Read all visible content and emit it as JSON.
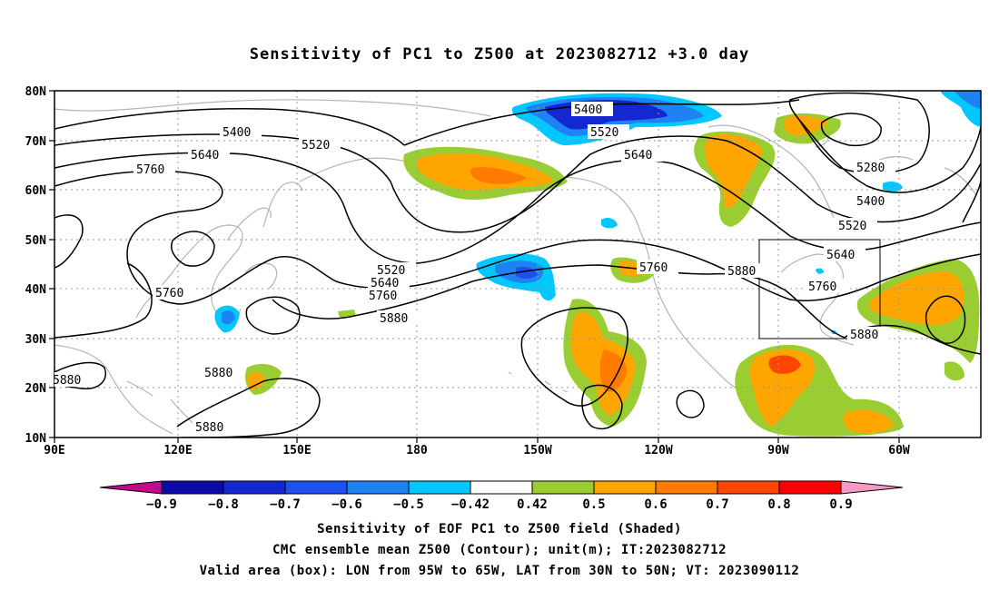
{
  "title": "Sensitivity of PC1 to Z500 at 2023082712 +3.0 day",
  "axes": {
    "lon_labels": [
      "90E",
      "120E",
      "150E",
      "180",
      "150W",
      "120W",
      "90W",
      "60W"
    ],
    "lat_labels": [
      "80N",
      "70N",
      "60N",
      "50N",
      "40N",
      "30N",
      "20N",
      "10N"
    ]
  },
  "contour_labels": {
    "c5400a": "5400",
    "c5520a": "5520",
    "c5640a": "5640",
    "c5760a": "5760",
    "c5400b": "5400",
    "c5520b": "5520",
    "c5640b": "5640",
    "c5280": "5280",
    "c5400c": "5400",
    "c5520c": "5520",
    "c5640c": "5640",
    "c5760c": "5760",
    "c5880c": "5880",
    "c5520d": "5520",
    "c5640d": "5640",
    "c5760d": "5760",
    "c5880d": "5880",
    "c5760e": "5760",
    "c5880e": "5880",
    "c5760f": "5760",
    "c5880f": "5880",
    "c5880g": "5880",
    "c5880h": "5880"
  },
  "colorbar": {
    "labels": [
      "-0.9",
      "-0.8",
      "-0.7",
      "-0.6",
      "-0.5",
      "-0.42",
      "0.42",
      "0.5",
      "0.6",
      "0.7",
      "0.8",
      "0.9"
    ],
    "colors": [
      "#c4088b",
      "#0a0aa8",
      "#1428d2",
      "#1e50f0",
      "#1e82f5",
      "#00c8ff",
      "#ffffff",
      "#9acd32",
      "#ffa500",
      "#ff7a00",
      "#ff4500",
      "#ff0000",
      "#f59ac4"
    ]
  },
  "captions": {
    "line1": "Sensitivity of EOF PC1 to Z500 field (Shaded)",
    "line2": "CMC ensemble mean Z500 (Contour); unit(m); IT:2023082712",
    "line3": "Valid area (box): LON from 95W to 65W, LAT from 30N to 50N; VT: 2023090112"
  }
}
